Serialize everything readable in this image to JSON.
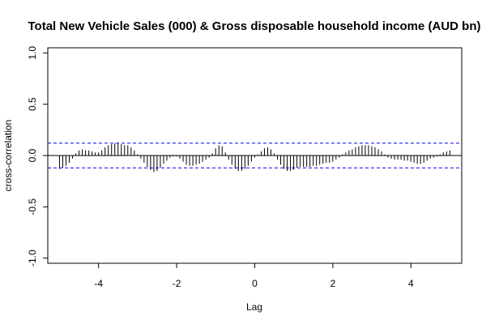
{
  "chart_data": {
    "type": "bar",
    "title": "Total New Vehicle Sales (000) & Gross disposable household income (AUD bn)",
    "xlabel": "Lag",
    "ylabel": "cross-correlation",
    "xlim": [
      -5.3,
      5.3
    ],
    "ylim": [
      -1.05,
      1.05
    ],
    "x_ticks": [
      -4,
      -2,
      0,
      2,
      4
    ],
    "y_ticks": [
      -1.0,
      -0.5,
      0.0,
      0.5,
      1.0
    ],
    "x_tick_labels": [
      "-4",
      "-2",
      "0",
      "2",
      "4"
    ],
    "y_tick_labels": [
      "-1.0",
      "-0.5",
      "0.0",
      "0.5",
      "1.0"
    ],
    "confidence_bound": 0.12,
    "confidence_line_color": "#0000ff",
    "bar_color": "#000000",
    "lag_step": 0.0833,
    "lag_start": -5.0,
    "values": [
      -0.13,
      -0.12,
      -0.1,
      -0.07,
      -0.03,
      0.02,
      0.05,
      0.06,
      0.05,
      0.05,
      0.04,
      0.03,
      0.03,
      0.05,
      0.08,
      0.1,
      0.11,
      0.12,
      0.12,
      0.11,
      0.1,
      0.1,
      0.08,
      0.05,
      0.01,
      -0.03,
      -0.07,
      -0.11,
      -0.14,
      -0.16,
      -0.15,
      -0.12,
      -0.08,
      -0.05,
      -0.02,
      -0.01,
      -0.01,
      -0.03,
      -0.06,
      -0.09,
      -0.1,
      -0.1,
      -0.09,
      -0.08,
      -0.06,
      -0.04,
      -0.02,
      0.02,
      0.07,
      0.1,
      0.09,
      0.03,
      -0.04,
      -0.09,
      -0.13,
      -0.15,
      -0.15,
      -0.13,
      -0.1,
      -0.06,
      -0.02,
      0.01,
      0.04,
      0.07,
      0.08,
      0.06,
      0.02,
      -0.04,
      -0.09,
      -0.13,
      -0.15,
      -0.15,
      -0.14,
      -0.12,
      -0.11,
      -0.11,
      -0.11,
      -0.11,
      -0.1,
      -0.1,
      -0.09,
      -0.08,
      -0.07,
      -0.07,
      -0.06,
      -0.04,
      -0.02,
      0.01,
      0.03,
      0.05,
      0.06,
      0.08,
      0.09,
      0.1,
      0.1,
      0.1,
      0.09,
      0.08,
      0.06,
      0.04,
      0.01,
      -0.02,
      -0.03,
      -0.04,
      -0.04,
      -0.04,
      -0.05,
      -0.05,
      -0.06,
      -0.07,
      -0.08,
      -0.08,
      -0.07,
      -0.05,
      -0.03,
      -0.02,
      -0.01,
      0.01,
      0.03,
      0.04,
      0.05
    ]
  }
}
